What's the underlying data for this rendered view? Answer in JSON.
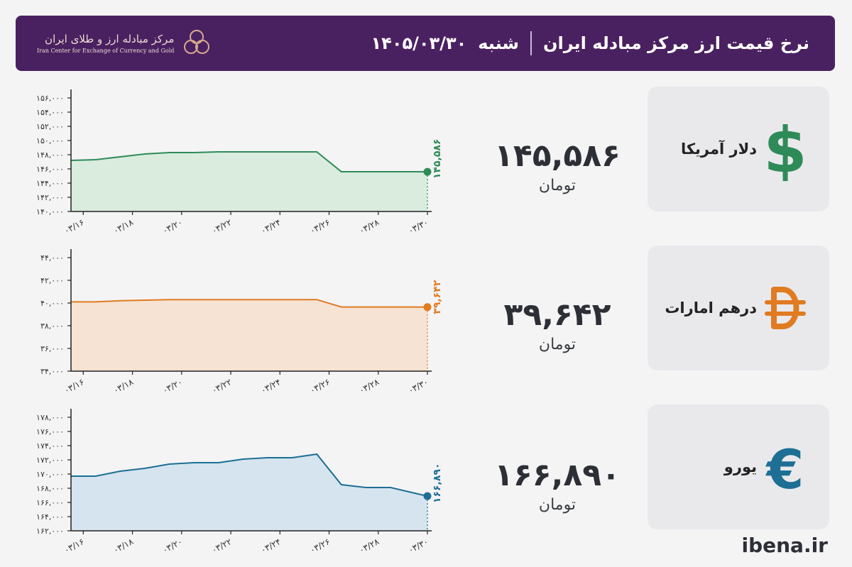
{
  "header": {
    "title": "نرخ قیمت ارز مرکز مبادله ایران",
    "day": "شنبه",
    "date": "۱۴۰۵/۰۳/۳۰",
    "logo_fa": "مرکز مبادله ارز و طلای ایران",
    "logo_en": "Iran Center for Exchange of Currency and Gold",
    "colors": {
      "header_bg": "#4a2160",
      "page_bg": "#f4f4f5"
    }
  },
  "currencies": [
    {
      "name": "دلار آمریکا",
      "icon": "dollar-icon",
      "value": "۱۴۵,۵۸۶",
      "unit": "تومان",
      "color": "#2e8b57"
    },
    {
      "name": "درهم امارات",
      "icon": "dirham-icon",
      "value": "۳۹,۶۴۲",
      "unit": "تومان",
      "color": "#e07b22"
    },
    {
      "name": "یورو",
      "icon": "euro-icon",
      "value": "۱۶۶,۸۹۰",
      "unit": "تومان",
      "color": "#1d6f94"
    }
  ],
  "chart_data": [
    {
      "type": "area",
      "series": [
        {
          "values": [
            147200,
            147300,
            147700,
            148100,
            148300,
            148300,
            148400,
            148400,
            148400,
            145600,
            145600,
            145600,
            145600,
            145586
          ]
        }
      ],
      "x_index": [
        15.5,
        16.5,
        17.5,
        18.5,
        19.5,
        20.5,
        21.5,
        22.5,
        25.5,
        26.5,
        27.5,
        28.5,
        29.5,
        30
      ],
      "x_ticks": [
        "۰۳/۱۶",
        "۰۳/۱۸",
        "۰۳/۲۰",
        "۰۳/۲۲",
        "۰۳/۲۴",
        "۰۳/۲۶",
        "۰۳/۲۸",
        "۰۳/۳۰"
      ],
      "y_ticks": [
        "۱۴۰,۰۰۰",
        "۱۴۲,۰۰۰",
        "۱۴۴,۰۰۰",
        "۱۴۶,۰۰۰",
        "۱۴۸,۰۰۰",
        "۱۵۰,۰۰۰",
        "۱۵۲,۰۰۰",
        "۱۵۴,۰۰۰",
        "۱۵۶,۰۰۰"
      ],
      "ylim": [
        140000,
        156000
      ],
      "last_label": "۱۴۵,۵۸۶",
      "color": "#2e8b57",
      "fill": "#d4ead9"
    },
    {
      "type": "area",
      "series": [
        {
          "values": [
            40100,
            40100,
            40200,
            40250,
            40300,
            40300,
            40300,
            40300,
            40300,
            39650,
            39650,
            39650,
            39650,
            39642
          ]
        }
      ],
      "x_index": [
        15.5,
        16.5,
        17.5,
        18.5,
        19.5,
        20.5,
        21.5,
        22.5,
        25.5,
        26.5,
        27.5,
        28.5,
        29.5,
        30
      ],
      "x_ticks": [
        "۰۳/۱۶",
        "۰۳/۱۸",
        "۰۳/۲۰",
        "۰۳/۲۲",
        "۰۳/۲۴",
        "۰۳/۲۶",
        "۰۳/۲۸",
        "۰۳/۳۰"
      ],
      "y_ticks": [
        "۳۴,۰۰۰",
        "۳۶,۰۰۰",
        "۳۸,۰۰۰",
        "۴۰,۰۰۰",
        "۴۲,۰۰۰",
        "۴۴,۰۰۰"
      ],
      "ylim": [
        34000,
        44000
      ],
      "last_label": "۳۹,۶۴۲",
      "color": "#e07b22",
      "fill": "#f6dfcc"
    },
    {
      "type": "area",
      "series": [
        {
          "values": [
            169700,
            169700,
            170400,
            170800,
            171400,
            171600,
            171600,
            172100,
            172300,
            172300,
            172800,
            168500,
            168100,
            168100,
            166890
          ]
        }
      ],
      "x_index": [
        15.5,
        16.5,
        17.5,
        18.5,
        19.5,
        20.5,
        21.5,
        22.5,
        23.5,
        24.5,
        25.5,
        26.5,
        27.5,
        28.5,
        30
      ],
      "x_ticks": [
        "۰۳/۱۶",
        "۰۳/۱۸",
        "۰۳/۲۰",
        "۰۳/۲۲",
        "۰۳/۲۴",
        "۰۳/۲۶",
        "۰۳/۲۸",
        "۰۳/۳۰"
      ],
      "y_ticks": [
        "۱۶۲,۰۰۰",
        "۱۶۴,۰۰۰",
        "۱۶۶,۰۰۰",
        "۱۶۸,۰۰۰",
        "۱۷۰,۰۰۰",
        "۱۷۲,۰۰۰",
        "۱۷۴,۰۰۰",
        "۱۷۶,۰۰۰",
        "۱۷۸,۰۰۰"
      ],
      "ylim": [
        162000,
        178000
      ],
      "last_label": "۱۶۶,۸۹۰",
      "color": "#1d6f94",
      "fill": "#cfe1ec"
    }
  ],
  "footer": {
    "site": "ibena.ir"
  }
}
